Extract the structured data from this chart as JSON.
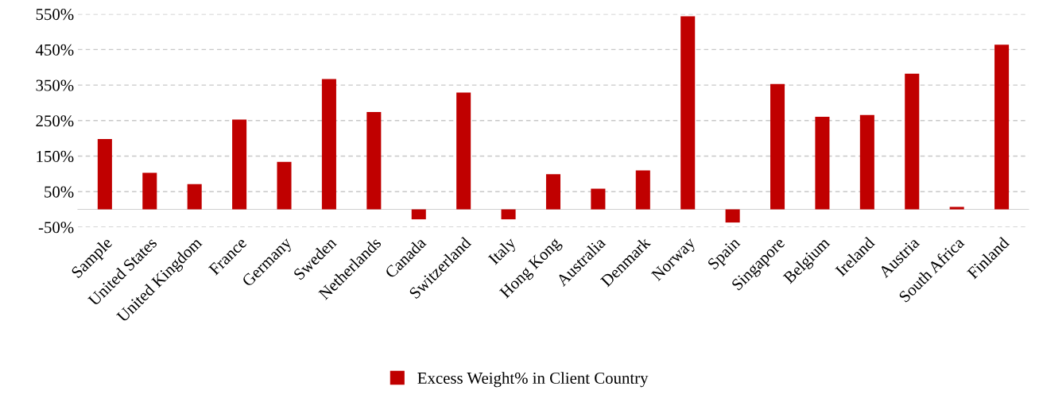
{
  "chart_data": {
    "type": "bar",
    "categories": [
      "Sample",
      "United States",
      "United Kingdom",
      "France",
      "Germany",
      "Sweden",
      "Netherlands",
      "Canada",
      "Switzerland",
      "Italy",
      "Hong Kong",
      "Australia",
      "Denmark",
      "Norway",
      "Spain",
      "Singapore",
      "Belgium",
      "Ireland",
      "Austria",
      "South Africa",
      "Finland"
    ],
    "series": [
      {
        "name": "Excess Weight% in Client Country",
        "color": "#c00000",
        "values": [
          198,
          103,
          71,
          253,
          134,
          367,
          274,
          -28,
          329,
          -28,
          99,
          58,
          110,
          544,
          -37,
          353,
          261,
          266,
          382,
          7,
          464
        ]
      }
    ],
    "ylim": [
      -50,
      550
    ],
    "yticks": [
      {
        "value": -50,
        "label": "-50%"
      },
      {
        "value": 50,
        "label": "50%"
      },
      {
        "value": 150,
        "label": "150%"
      },
      {
        "value": 250,
        "label": "250%"
      },
      {
        "value": 350,
        "label": "350%"
      },
      {
        "value": 450,
        "label": "450%"
      },
      {
        "value": 550,
        "label": "550%"
      }
    ],
    "grid": "y",
    "legend": "bottom"
  }
}
